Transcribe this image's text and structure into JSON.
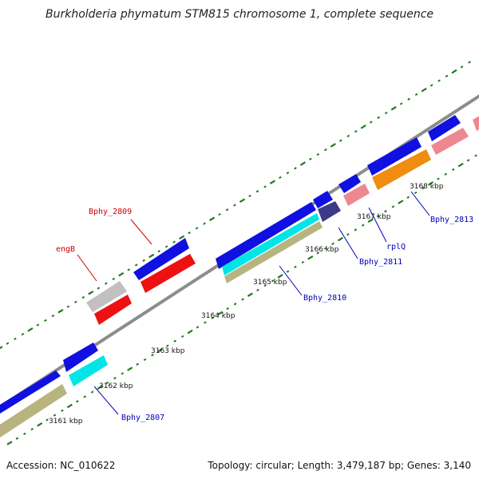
{
  "title": "Burkholderia phymatum STM815 chromosome 1, complete sequence",
  "footer": {
    "accession": "Accession: NC_010622",
    "summary": "Topology: circular; Length: 3,479,187 bp; Genes: 3,140"
  },
  "scale_labels": [
    "3161 kbp",
    "3162 kbp",
    "3163 kbp",
    "3164 kbp",
    "3165 kbp",
    "3166 kbp",
    "3167 kbp",
    "3168 kbp"
  ],
  "gene_labels": [
    "engB",
    "Bphy_2809",
    "Bphy_2807",
    "Bphy_2810",
    "Bphy_2811",
    "rplQ",
    "Bphy_2813"
  ],
  "colors": {
    "backbone": "#8c8c8c",
    "tick": "#1e7a1e",
    "cds_blue": "#1010e0",
    "cds_red": "#ee1111",
    "cds_gray": "#c0c0c0",
    "cds_cyan": "#00e5e5",
    "cds_khaki": "#b8b480",
    "cds_navy": "#3c3a88",
    "cds_pink": "#ee8890",
    "cds_orange": "#f08c10",
    "label_red": "#cc0000",
    "label_blue": "#0000bb"
  }
}
